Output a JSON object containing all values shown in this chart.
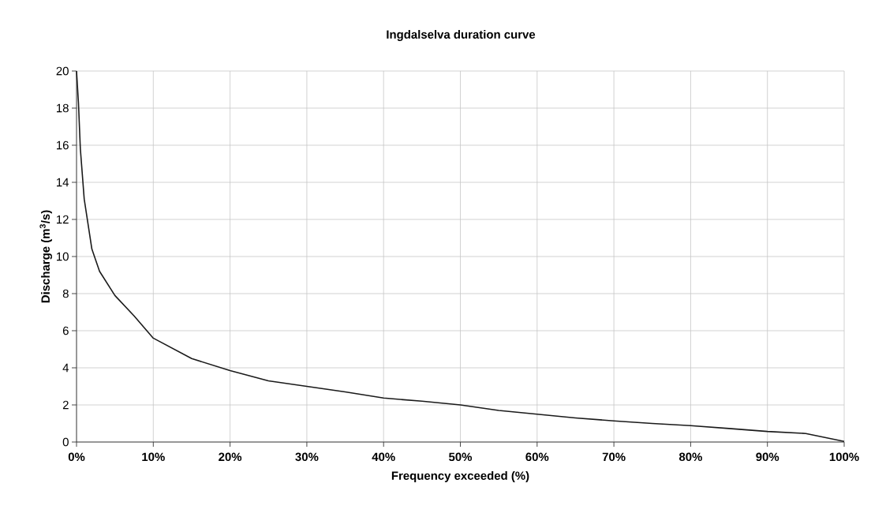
{
  "chart_data": {
    "type": "line",
    "title": "Ingdalselva duration curve",
    "xlabel": "Frequency exceeded (%)",
    "ylabel": "Discharge (m$^{3}$/s)",
    "x": [
      0,
      0.25,
      0.5,
      1,
      2,
      3,
      5,
      7.5,
      10,
      15,
      20,
      25,
      30,
      35,
      40,
      45,
      50,
      55,
      60,
      65,
      70,
      75,
      80,
      85,
      90,
      95,
      100
    ],
    "series": [
      {
        "color": "#1a1a1a",
        "values": [
          20,
          18.3,
          15.8,
          13.1,
          10.4,
          9.2,
          7.9,
          6.8,
          5.6,
          4.5,
          3.85,
          3.3,
          3.0,
          2.7,
          2.37,
          2.2,
          2.0,
          1.7,
          1.5,
          1.3,
          1.14,
          1.0,
          0.88,
          0.73,
          0.57,
          0.46,
          0.03
        ]
      }
    ],
    "xlim": [
      0,
      100
    ],
    "ylim": [
      0,
      20
    ],
    "xticks": [
      {
        "value": 0,
        "label": "0%"
      },
      {
        "value": 10,
        "label": "10%"
      },
      {
        "value": 20,
        "label": "20%"
      },
      {
        "value": 30,
        "label": "30%"
      },
      {
        "value": 40,
        "label": "40%"
      },
      {
        "value": 50,
        "label": "50%"
      },
      {
        "value": 60,
        "label": "60%"
      },
      {
        "value": 70,
        "label": "70%"
      },
      {
        "value": 80,
        "label": "80%"
      },
      {
        "value": 90,
        "label": "90%"
      },
      {
        "value": 100,
        "label": "100%"
      }
    ],
    "yticks": [
      0,
      2,
      4,
      6,
      8,
      10,
      12,
      14,
      16,
      18,
      20
    ],
    "grid": true,
    "marker": "none",
    "line_style": "solid"
  }
}
